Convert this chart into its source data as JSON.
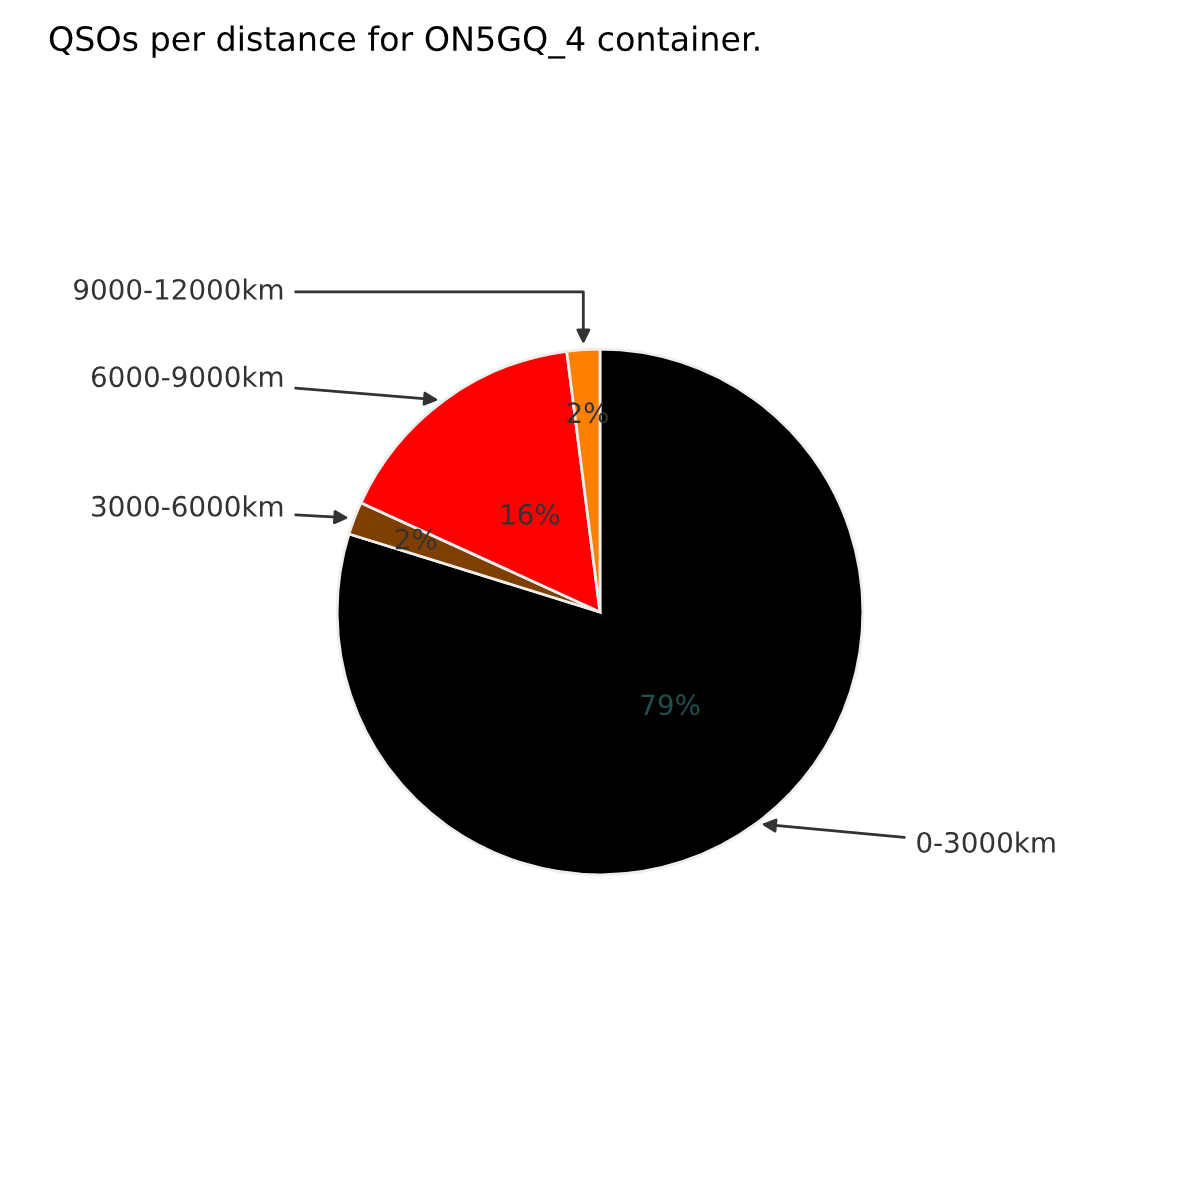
{
  "chart_data": {
    "type": "pie",
    "title": "QSOs per distance for ON5GQ_4 container.",
    "categories": [
      "0-3000km",
      "3000-6000km",
      "6000-9000km",
      "9000-12000km"
    ],
    "values": [
      79,
      2,
      16,
      2
    ],
    "colors": [
      "#000000",
      "#7f3f00",
      "#ff0000",
      "#ff7f00"
    ],
    "value_labels": [
      "79%",
      "2%",
      "16%",
      "2%"
    ],
    "legend": false
  }
}
